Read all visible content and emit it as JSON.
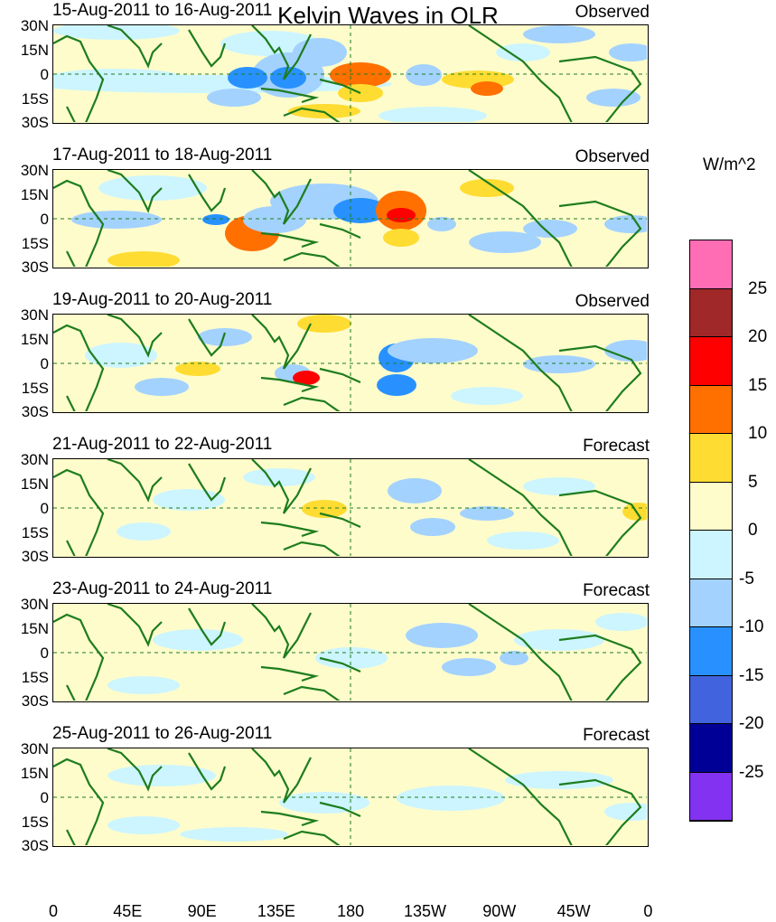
{
  "title": "Kelvin Waves in OLR",
  "lat_labels": [
    "30N",
    "15N",
    "0",
    "15S",
    "30S"
  ],
  "lon_labels": [
    "0",
    "45E",
    "90E",
    "135E",
    "180",
    "135W",
    "90W",
    "45W",
    "0"
  ],
  "colorbar": {
    "unit": "W/m^2",
    "colors": [
      "#ff6eb4",
      "#a02828",
      "#ff0000",
      "#ff7000",
      "#ffdc32",
      "#fffccc",
      "#ccf5ff",
      "#a3d2ff",
      "#2891ff",
      "#4164de",
      "#000096",
      "#8232f0"
    ],
    "labels": [
      "25",
      "20",
      "15",
      "10",
      "5",
      "0",
      "-5",
      "-10",
      "-15",
      "-20",
      "-25"
    ]
  },
  "panels": [
    {
      "period": "15-Aug-2011 to 16-Aug-2011",
      "type": "Observed"
    },
    {
      "period": "17-Aug-2011 to 18-Aug-2011",
      "type": "Observed"
    },
    {
      "period": "19-Aug-2011 to 20-Aug-2011",
      "type": "Observed"
    },
    {
      "period": "21-Aug-2011 to 22-Aug-2011",
      "type": "Forecast"
    },
    {
      "period": "23-Aug-2011 to 24-Aug-2011",
      "type": "Forecast"
    },
    {
      "period": "25-Aug-2011 to 26-Aug-2011",
      "type": "Forecast"
    }
  ]
}
